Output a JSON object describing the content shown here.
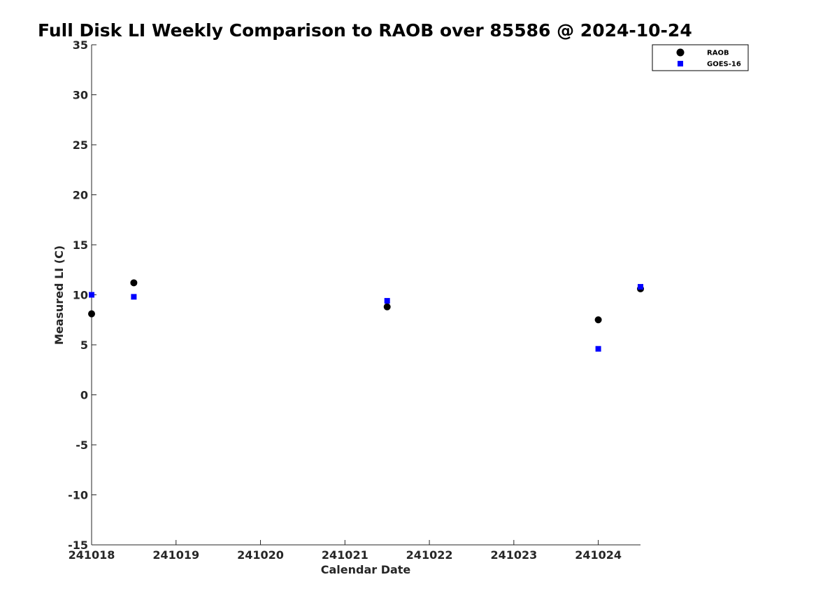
{
  "chart_data": {
    "type": "scatter",
    "title": "Full Disk LI Weekly Comparison to RAOB over 85586 @ 2024-10-24",
    "xlabel": "Calendar Date",
    "ylabel": "Measured LI (C)",
    "x_tick_labels": [
      "241018",
      "241019",
      "241020",
      "241021",
      "241022",
      "241023",
      "241024"
    ],
    "y_tick_labels": [
      "35",
      "30",
      "25",
      "20",
      "15",
      "10",
      "5",
      "0",
      "-5",
      "-10",
      "-15"
    ],
    "y_ticks": [
      35,
      30,
      25,
      20,
      15,
      10,
      5,
      0,
      -5,
      -10,
      -15
    ],
    "xlim": [
      "2024-10-18 00:00",
      "2024-10-24 12:00"
    ],
    "ylim": [
      -15,
      35
    ],
    "grid": false,
    "legend_position": "top-right",
    "series": [
      {
        "name": "RAOB",
        "marker": "circle",
        "color": "#000000",
        "x": [
          "2024-10-18 00:00",
          "2024-10-18 12:00",
          "2024-10-21 12:00",
          "2024-10-24 00:00",
          "2024-10-24 12:00"
        ],
        "y": [
          8.1,
          11.2,
          8.8,
          7.5,
          10.6
        ]
      },
      {
        "name": "GOES-16",
        "marker": "square",
        "color": "#0000ff",
        "x": [
          "2024-10-18 00:00",
          "2024-10-18 12:00",
          "2024-10-21 12:00",
          "2024-10-24 00:00",
          "2024-10-24 12:00"
        ],
        "y": [
          10.0,
          9.8,
          9.4,
          4.6,
          10.8
        ]
      }
    ]
  }
}
